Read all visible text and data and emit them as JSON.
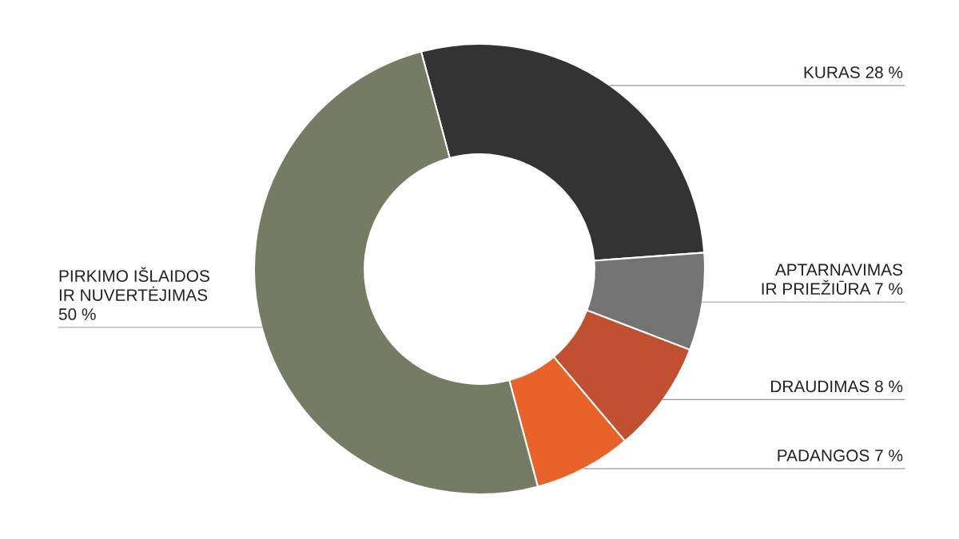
{
  "chart_data": {
    "type": "donut",
    "categories": [
      "KURAS",
      "APTARNAVIMAS\nIR PRIEŽIŪRA",
      "DRAUDIMAS",
      "PADANGOS",
      "PIRKIMO IŠLAIDOS\nIR NUVERTĖJIMAS"
    ],
    "values": [
      28,
      7,
      8,
      7,
      50
    ],
    "value_labels": [
      "28 %",
      "7 %",
      "8 %",
      "7 %",
      "50 %"
    ],
    "colors": [
      "#333333",
      "#737373",
      "#c05030",
      "#e8622a",
      "#767b63"
    ]
  }
}
